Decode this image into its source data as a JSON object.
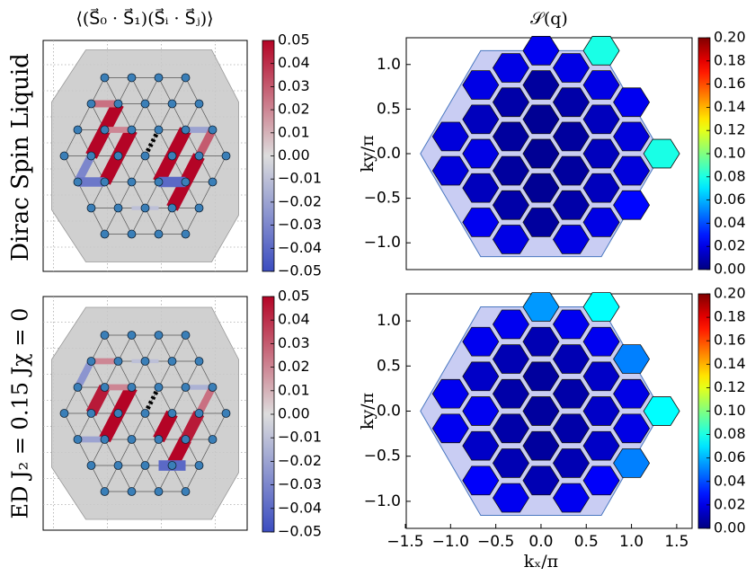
{
  "row_labels": [
    "Dirac Spin Liquid",
    "ED  J₂ = 0.15  Jχ = 0"
  ],
  "chart_data": [
    {
      "type": "lattice",
      "title": "⟨(S⃗₀ · S⃗₁)(S⃗ᵢ · S⃗ⱼ)⟩",
      "colormap": "coolwarm",
      "clim": [
        -0.05,
        0.05
      ],
      "cticks": [
        0.05,
        0.04,
        0.03,
        0.02,
        0.01,
        {
          "value": 0,
          "label": "0.00"
        },
        {
          "value": -0.01,
          "label": "−0.01"
        },
        {
          "value": -0.02,
          "label": "−0.02"
        },
        {
          "value": -0.03,
          "label": "−0.03"
        },
        {
          "value": -0.04,
          "label": "−0.04"
        },
        {
          "value": -0.05,
          "label": "−0.05"
        }
      ],
      "bonds": [
        {
          "from": [
            -1.5,
            -0.866
          ],
          "to": [
            -1,
            0
          ],
          "value": 0.05
        },
        {
          "from": [
            -1,
            0
          ],
          "to": [
            -0.5,
            0.866
          ],
          "value": 0.05
        },
        {
          "from": [
            -2,
            0
          ],
          "to": [
            -1.5,
            0.866
          ],
          "value": 0.05
        },
        {
          "from": [
            -1.5,
            0.866
          ],
          "to": [
            -1,
            1.732
          ],
          "value": 0.05
        },
        {
          "from": [
            0.5,
            -0.866
          ],
          "to": [
            1,
            0
          ],
          "value": 0.05
        },
        {
          "from": [
            1,
            0
          ],
          "to": [
            1.5,
            0.866
          ],
          "value": 0.05
        },
        {
          "from": [
            1,
            -1.732
          ],
          "to": [
            1.5,
            -0.866
          ],
          "value": 0.05
        },
        {
          "from": [
            1.5,
            -0.866
          ],
          "to": [
            2,
            0
          ],
          "value": 0.05
        },
        {
          "from": [
            -2,
            0
          ],
          "to": [
            -2.5,
            -0.866
          ],
          "value": -0.03
        },
        {
          "from": [
            0.5,
            -0.866
          ],
          "to": [
            1.5,
            -0.866
          ],
          "value": -0.04
        },
        {
          "from": [
            1.5,
            0.866
          ],
          "to": [
            2.5,
            0.866
          ],
          "value": -0.02
        },
        {
          "from": [
            -1.5,
            0.866
          ],
          "to": [
            -0.5,
            0.866
          ],
          "value": 0.02
        },
        {
          "from": [
            -2,
            1.732
          ],
          "to": [
            -1,
            1.732
          ],
          "value": 0.025
        },
        {
          "from": [
            2,
            0
          ],
          "to": [
            2.5,
            0.866
          ],
          "value": 0.03
        },
        {
          "from": [
            -0.5,
            -1.732
          ],
          "to": [
            0.5,
            -1.732
          ],
          "value": -0.01
        },
        {
          "from": [
            -2.5,
            -0.866
          ],
          "to": [
            -1.5,
            -0.866
          ],
          "value": -0.035
        }
      ]
    },
    {
      "type": "hexmap",
      "title": "𝒮(q)",
      "ylabel": "ky/π",
      "colormap": "jet",
      "xlim": [
        -1.49,
        1.67
      ],
      "ylim": [
        -1.3,
        1.3
      ],
      "yticks": [
        {
          "value": 1,
          "label": "1.0"
        },
        0.5,
        {
          "value": 0,
          "label": "0.0"
        },
        {
          "value": -0.5,
          "label": "−0.5"
        },
        {
          "value": -1,
          "label": "−1.0"
        }
      ],
      "clim": [
        0,
        0.2
      ],
      "cticks": [
        {
          "value": 0,
          "label": "0.00"
        },
        0.02,
        0.04,
        0.06,
        0.08,
        {
          "value": 0.1,
          "label": "0.10"
        },
        0.12,
        0.14,
        0.16,
        0.18,
        {
          "value": 0.2,
          "label": "0.20"
        }
      ],
      "x": [
        -1,
        -1,
        -0.667,
        -0.667,
        -0.667,
        -0.667,
        -0.667,
        -0.333,
        -0.333,
        -0.333,
        -0.333,
        -0.333,
        -0.333,
        0,
        0,
        0,
        0,
        0,
        0,
        0.333,
        0.333,
        0.333,
        0.333,
        0.333,
        0.333,
        0.667,
        0.667,
        0.667,
        0.667,
        0.667,
        0.667,
        1,
        1,
        1,
        1,
        1.333
      ],
      "y": [
        0.192,
        -0.192,
        0.77,
        0.385,
        0,
        -0.385,
        -0.77,
        0.962,
        0.577,
        0.192,
        -0.192,
        -0.577,
        -0.962,
        1.155,
        0.77,
        0.385,
        0,
        -0.385,
        -0.77,
        0.962,
        0.577,
        0.192,
        -0.192,
        -0.577,
        -0.962,
        1.155,
        0.77,
        0.385,
        0,
        -0.385,
        -0.77,
        0.577,
        0.192,
        -0.192,
        -0.577,
        0
      ],
      "values": [
        0.018,
        0.018,
        0.02,
        0.012,
        0.02,
        0.012,
        0.022,
        0.02,
        0.008,
        0.006,
        0.006,
        0.008,
        0.02,
        0.022,
        0.006,
        0.004,
        0.004,
        0.004,
        0.006,
        0.02,
        0.008,
        0.006,
        0.006,
        0.008,
        0.02,
        0.08,
        0.02,
        0.012,
        0.012,
        0.012,
        0.02,
        0.022,
        0.018,
        0.018,
        0.026,
        0.08
      ]
    },
    {
      "type": "lattice",
      "colormap": "coolwarm",
      "clim": [
        -0.05,
        0.05
      ],
      "cticks": [
        0.05,
        0.04,
        0.03,
        0.02,
        0.01,
        {
          "value": 0,
          "label": "0.00"
        },
        {
          "value": -0.01,
          "label": "−0.01"
        },
        {
          "value": -0.02,
          "label": "−0.02"
        },
        {
          "value": -0.03,
          "label": "−0.03"
        },
        {
          "value": -0.04,
          "label": "−0.04"
        },
        {
          "value": -0.05,
          "label": "−0.05"
        }
      ],
      "bonds": [
        {
          "from": [
            -1.5,
            -0.866
          ],
          "to": [
            -1,
            0
          ],
          "value": 0.05
        },
        {
          "from": [
            -1,
            0
          ],
          "to": [
            -0.5,
            0.866
          ],
          "value": 0.05
        },
        {
          "from": [
            -2,
            0
          ],
          "to": [
            -1.5,
            0.866
          ],
          "value": 0.045
        },
        {
          "from": [
            0.5,
            -0.866
          ],
          "to": [
            1,
            0
          ],
          "value": 0.05
        },
        {
          "from": [
            1,
            -1.732
          ],
          "to": [
            1.5,
            -0.866
          ],
          "value": 0.05
        },
        {
          "from": [
            1.5,
            -0.866
          ],
          "to": [
            2,
            0
          ],
          "value": 0.045
        },
        {
          "from": [
            0.5,
            -1.732
          ],
          "to": [
            1.5,
            -1.732
          ],
          "value": -0.04
        },
        {
          "from": [
            -2.5,
            -0.866
          ],
          "to": [
            -1.5,
            -0.866
          ],
          "value": -0.02
        },
        {
          "from": [
            1.5,
            0.866
          ],
          "to": [
            2.5,
            0.866
          ],
          "value": -0.015
        },
        {
          "from": [
            -1.5,
            0.866
          ],
          "to": [
            -0.5,
            0.866
          ],
          "value": 0.02
        },
        {
          "from": [
            -2,
            1.732
          ],
          "to": [
            -1,
            1.732
          ],
          "value": 0.02
        },
        {
          "from": [
            2,
            0
          ],
          "to": [
            2.5,
            0.866
          ],
          "value": 0.025
        },
        {
          "from": [
            -0.5,
            1.732
          ],
          "to": [
            0.5,
            1.732
          ],
          "value": -0.01
        },
        {
          "from": [
            -2.5,
            0.866
          ],
          "to": [
            -2,
            1.732
          ],
          "value": -0.025
        }
      ]
    },
    {
      "type": "hexmap",
      "xlabel": "kₓ/π",
      "ylabel": "ky/π",
      "colormap": "jet",
      "xlim": [
        -1.49,
        1.67
      ],
      "ylim": [
        -1.3,
        1.3
      ],
      "xticks": [
        {
          "value": -1.5,
          "label": "−1.5"
        },
        {
          "value": -1,
          "label": "−1.0"
        },
        {
          "value": -0.5,
          "label": "−0.5"
        },
        {
          "value": 0,
          "label": "0.0"
        },
        0.5,
        {
          "value": 1,
          "label": "1.0"
        },
        1.5
      ],
      "yticks": [
        {
          "value": 1,
          "label": "1.0"
        },
        0.5,
        {
          "value": 0,
          "label": "0.0"
        },
        {
          "value": -0.5,
          "label": "−0.5"
        },
        {
          "value": -1,
          "label": "−1.0"
        }
      ],
      "clim": [
        0,
        0.2
      ],
      "cticks": [
        {
          "value": 0,
          "label": "0.00"
        },
        0.02,
        0.04,
        0.06,
        0.08,
        {
          "value": 0.1,
          "label": "0.10"
        },
        0.12,
        0.14,
        0.16,
        0.18,
        {
          "value": 0.2,
          "label": "0.20"
        }
      ],
      "x": [
        -1,
        -1,
        -0.667,
        -0.667,
        -0.667,
        -0.667,
        -0.667,
        -0.333,
        -0.333,
        -0.333,
        -0.333,
        -0.333,
        -0.333,
        0,
        0,
        0,
        0,
        0,
        0,
        0.333,
        0.333,
        0.333,
        0.333,
        0.333,
        0.333,
        0.667,
        0.667,
        0.667,
        0.667,
        0.667,
        0.667,
        1,
        1,
        1,
        1,
        1.333
      ],
      "y": [
        0.192,
        -0.192,
        0.77,
        0.385,
        0,
        -0.385,
        -0.77,
        0.962,
        0.577,
        0.192,
        -0.192,
        -0.577,
        -0.962,
        1.155,
        0.77,
        0.385,
        0,
        -0.385,
        -0.77,
        0.962,
        0.577,
        0.192,
        -0.192,
        -0.577,
        -0.962,
        1.155,
        0.77,
        0.385,
        0,
        -0.385,
        -0.77,
        0.577,
        0.192,
        -0.192,
        -0.577,
        0
      ],
      "values": [
        0.022,
        0.022,
        0.022,
        0.014,
        0.022,
        0.014,
        0.024,
        0.022,
        0.01,
        0.008,
        0.008,
        0.01,
        0.022,
        0.055,
        0.01,
        0.006,
        0.006,
        0.006,
        0.01,
        0.022,
        0.01,
        0.008,
        0.008,
        0.01,
        0.022,
        0.075,
        0.022,
        0.014,
        0.014,
        0.014,
        0.024,
        0.05,
        0.02,
        0.02,
        0.05,
        0.075
      ]
    }
  ]
}
